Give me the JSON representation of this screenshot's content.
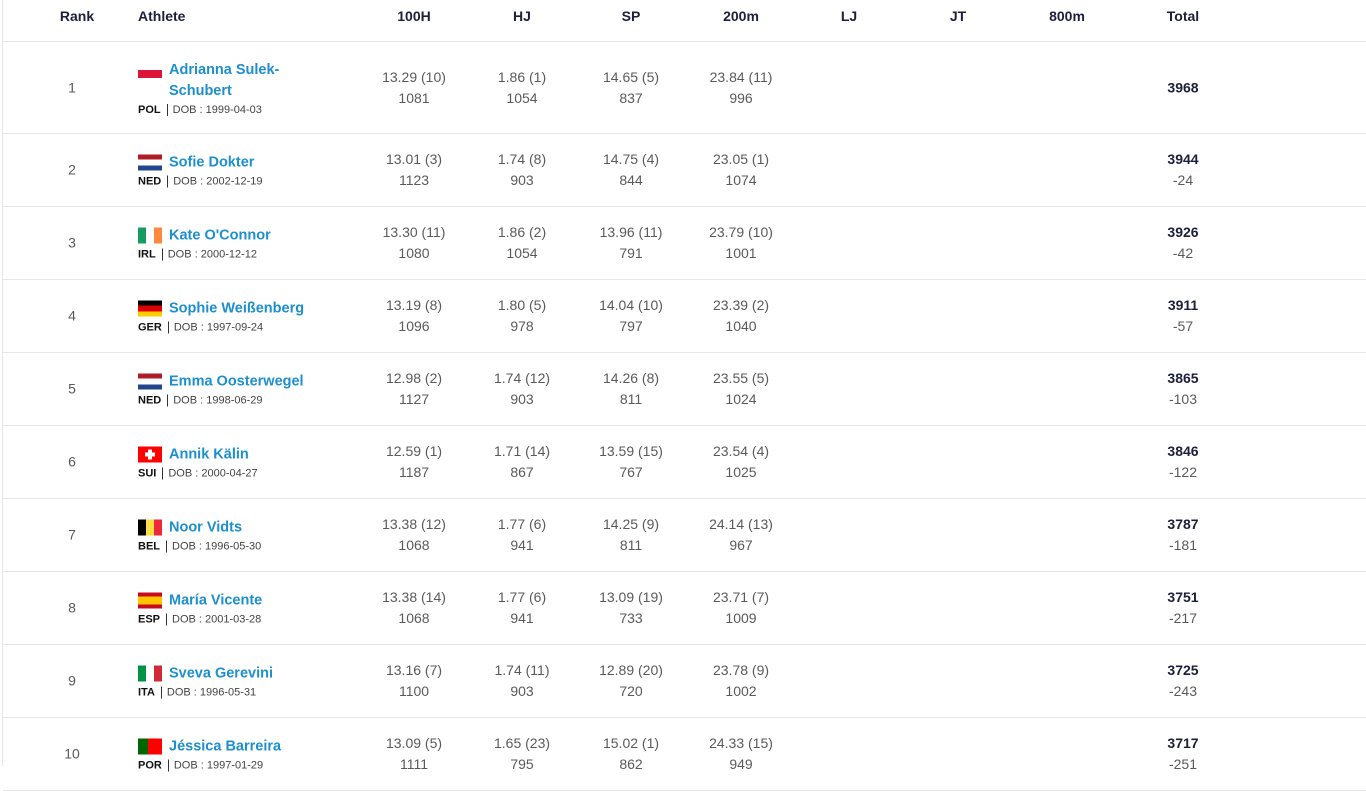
{
  "table": {
    "header": [
      "Rank",
      "Athlete",
      "100H",
      "HJ",
      "SP",
      "200m",
      "LJ",
      "JT",
      "800m",
      "Total"
    ],
    "rows": [
      {
        "rank": "1",
        "athlete": {
          "name": "Adrianna Sulek-Schubert",
          "country": "POL",
          "dob": "DOB : 1999-04-03"
        },
        "events": [
          [
            "13.29 (10)",
            "1081"
          ],
          [
            "1.86 (1)",
            "1054"
          ],
          [
            "14.65 (5)",
            "837"
          ],
          [
            "23.84 (11)",
            "996"
          ]
        ],
        "total": "3968"
      },
      {
        "rank": "2",
        "athlete": {
          "name": "Sofie Dokter",
          "country": "NED",
          "dob": "DOB : 2002-12-19"
        },
        "events": [
          [
            "13.01 (3)",
            "1123"
          ],
          [
            "1.74 (8)",
            "903"
          ],
          [
            "14.75 (4)",
            "844"
          ],
          [
            "23.05 (1)",
            "1074"
          ]
        ],
        "total": "3944",
        "diff": "-24"
      },
      {
        "rank": "3",
        "athlete": {
          "name": "Kate O'Connor",
          "country": "IRL",
          "dob": "DOB : 2000-12-12"
        },
        "events": [
          [
            "13.30 (11)",
            "1080"
          ],
          [
            "1.86 (2)",
            "1054"
          ],
          [
            "13.96 (11)",
            "791"
          ],
          [
            "23.79 (10)",
            "1001"
          ]
        ],
        "total": "3926",
        "diff": "-42"
      },
      {
        "rank": "4",
        "athlete": {
          "name": "Sophie Weißenberg",
          "country": "GER",
          "dob": "DOB : 1997-09-24"
        },
        "events": [
          [
            "13.19 (8)",
            "1096"
          ],
          [
            "1.80 (5)",
            "978"
          ],
          [
            "14.04 (10)",
            "797"
          ],
          [
            "23.39 (2)",
            "1040"
          ]
        ],
        "total": "3911",
        "diff": "-57"
      },
      {
        "rank": "5",
        "athlete": {
          "name": "Emma Oosterwegel",
          "country": "NED",
          "dob": "DOB : 1998-06-29"
        },
        "events": [
          [
            "12.98 (2)",
            "1127"
          ],
          [
            "1.74 (12)",
            "903"
          ],
          [
            "14.26 (8)",
            "811"
          ],
          [
            "23.55 (5)",
            "1024"
          ]
        ],
        "total": "3865",
        "diff": "-103"
      },
      {
        "rank": "6",
        "athlete": {
          "name": "Annik Kälin",
          "country": "SUI",
          "dob": "DOB : 2000-04-27"
        },
        "events": [
          [
            "12.59 (1)",
            "1187"
          ],
          [
            "1.71 (14)",
            "867"
          ],
          [
            "13.59 (15)",
            "767"
          ],
          [
            "23.54 (4)",
            "1025"
          ]
        ],
        "total": "3846",
        "diff": "-122"
      },
      {
        "rank": "7",
        "athlete": {
          "name": "Noor Vidts",
          "country": "BEL",
          "dob": "DOB : 1996-05-30"
        },
        "events": [
          [
            "13.38 (12)",
            "1068"
          ],
          [
            "1.77 (6)",
            "941"
          ],
          [
            "14.25 (9)",
            "811"
          ],
          [
            "24.14 (13)",
            "967"
          ]
        ],
        "total": "3787",
        "diff": "-181"
      },
      {
        "rank": "8",
        "athlete": {
          "name": "María Vicente",
          "country": "ESP",
          "dob": "DOB : 2001-03-28"
        },
        "events": [
          [
            "13.38 (14)",
            "1068"
          ],
          [
            "1.77 (6)",
            "941"
          ],
          [
            "13.09 (19)",
            "733"
          ],
          [
            "23.71 (7)",
            "1009"
          ]
        ],
        "total": "3751",
        "diff": "-217"
      },
      {
        "rank": "9",
        "athlete": {
          "name": "Sveva Gerevini",
          "country": "ITA",
          "dob": "DOB : 1996-05-31"
        },
        "events": [
          [
            "13.16 (7)",
            "1100"
          ],
          [
            "1.74 (11)",
            "903"
          ],
          [
            "12.89 (20)",
            "720"
          ],
          [
            "23.78 (9)",
            "1002"
          ]
        ],
        "total": "3725",
        "diff": "-243"
      },
      {
        "rank": "10",
        "athlete": {
          "name": "Jéssica Barreira",
          "country": "POR",
          "dob": "DOB : 1997-01-29"
        },
        "events": [
          [
            "13.09 (5)",
            "1111"
          ],
          [
            "1.65 (23)",
            "795"
          ],
          [
            "15.02 (1)",
            "862"
          ],
          [
            "24.33 (15)",
            "949"
          ]
        ],
        "total": "3717",
        "diff": "-251"
      }
    ]
  }
}
